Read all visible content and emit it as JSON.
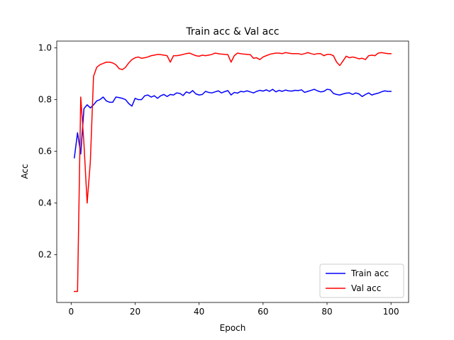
{
  "chart_data": {
    "type": "line",
    "title": "Train acc & Val acc",
    "xlabel": "Epoch",
    "ylabel": "Acc",
    "xlim": [
      -4.5,
      105.5
    ],
    "ylim": [
      0.0155,
      1.0265
    ],
    "xticks": [
      0,
      20,
      40,
      60,
      80,
      100
    ],
    "yticks": [
      0.2,
      0.4,
      0.6,
      0.8,
      1.0
    ],
    "xtick_labels": [
      "0",
      "20",
      "40",
      "60",
      "80",
      "100"
    ],
    "ytick_labels": [
      "0.2",
      "0.4",
      "0.6",
      "0.8",
      "1.0"
    ],
    "grid": false,
    "legend": "lower-right",
    "x": [
      1,
      2,
      3,
      4,
      5,
      6,
      7,
      8,
      9,
      10,
      11,
      12,
      13,
      14,
      15,
      16,
      17,
      18,
      19,
      20,
      21,
      22,
      23,
      24,
      25,
      26,
      27,
      28,
      29,
      30,
      31,
      32,
      33,
      34,
      35,
      36,
      37,
      38,
      39,
      40,
      41,
      42,
      43,
      44,
      45,
      46,
      47,
      48,
      49,
      50,
      51,
      52,
      53,
      54,
      55,
      56,
      57,
      58,
      59,
      60,
      61,
      62,
      63,
      64,
      65,
      66,
      67,
      68,
      69,
      70,
      71,
      72,
      73,
      74,
      75,
      76,
      77,
      78,
      79,
      80,
      81,
      82,
      83,
      84,
      85,
      86,
      87,
      88,
      89,
      90,
      91,
      92,
      93,
      94,
      95,
      96,
      97,
      98,
      99,
      100
    ],
    "series": [
      {
        "name": "Train acc",
        "color": "#0000ff",
        "values": [
          0.575,
          0.672,
          0.59,
          0.765,
          0.78,
          0.768,
          0.78,
          0.795,
          0.8,
          0.81,
          0.795,
          0.79,
          0.79,
          0.81,
          0.808,
          0.805,
          0.8,
          0.785,
          0.775,
          0.805,
          0.8,
          0.8,
          0.815,
          0.818,
          0.81,
          0.815,
          0.805,
          0.815,
          0.82,
          0.812,
          0.82,
          0.818,
          0.826,
          0.824,
          0.816,
          0.83,
          0.825,
          0.835,
          0.822,
          0.818,
          0.82,
          0.832,
          0.828,
          0.826,
          0.83,
          0.834,
          0.826,
          0.831,
          0.835,
          0.818,
          0.828,
          0.825,
          0.832,
          0.83,
          0.834,
          0.83,
          0.826,
          0.832,
          0.836,
          0.833,
          0.838,
          0.832,
          0.84,
          0.83,
          0.836,
          0.832,
          0.837,
          0.834,
          0.833,
          0.836,
          0.835,
          0.838,
          0.828,
          0.832,
          0.836,
          0.84,
          0.834,
          0.83,
          0.832,
          0.84,
          0.838,
          0.824,
          0.82,
          0.818,
          0.822,
          0.825,
          0.826,
          0.82,
          0.826,
          0.822,
          0.812,
          0.82,
          0.826,
          0.818,
          0.822,
          0.825,
          0.83,
          0.834,
          0.832,
          0.832
        ]
      },
      {
        "name": "Val acc",
        "color": "#ff0000",
        "values": [
          0.058,
          0.058,
          0.81,
          0.63,
          0.4,
          0.56,
          0.89,
          0.925,
          0.935,
          0.94,
          0.945,
          0.945,
          0.942,
          0.935,
          0.92,
          0.916,
          0.925,
          0.942,
          0.955,
          0.962,
          0.965,
          0.96,
          0.962,
          0.965,
          0.97,
          0.972,
          0.975,
          0.974,
          0.972,
          0.97,
          0.945,
          0.97,
          0.97,
          0.972,
          0.975,
          0.978,
          0.98,
          0.975,
          0.97,
          0.968,
          0.972,
          0.97,
          0.972,
          0.975,
          0.98,
          0.978,
          0.976,
          0.975,
          0.974,
          0.945,
          0.97,
          0.98,
          0.978,
          0.976,
          0.975,
          0.974,
          0.96,
          0.962,
          0.955,
          0.965,
          0.97,
          0.975,
          0.978,
          0.98,
          0.98,
          0.978,
          0.982,
          0.98,
          0.978,
          0.978,
          0.978,
          0.975,
          0.978,
          0.982,
          0.978,
          0.975,
          0.978,
          0.978,
          0.97,
          0.975,
          0.975,
          0.97,
          0.945,
          0.932,
          0.95,
          0.968,
          0.962,
          0.965,
          0.962,
          0.958,
          0.96,
          0.955,
          0.97,
          0.972,
          0.97,
          0.98,
          0.982,
          0.98,
          0.978,
          0.978
        ]
      }
    ]
  }
}
